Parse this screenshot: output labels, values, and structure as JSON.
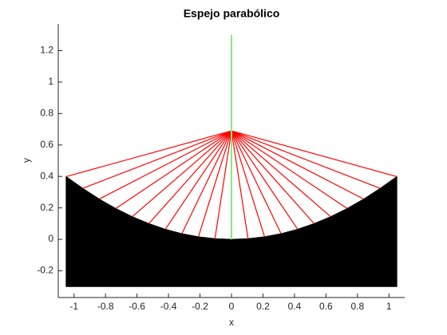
{
  "chart_data": {
    "type": "line",
    "title": "Espejo parabólico",
    "xlabel": "x",
    "ylabel": "y",
    "xlim": [
      -1.1,
      1.1
    ],
    "ylim": [
      -0.37,
      1.37
    ],
    "xticks": [
      -1,
      -0.8,
      -0.6,
      -0.4,
      -0.2,
      0,
      0.2,
      0.4,
      0.6,
      0.8,
      1
    ],
    "yticks": [
      -0.2,
      0,
      0.2,
      0.4,
      0.6,
      0.8,
      1,
      1.2
    ],
    "series": [
      {
        "color": "#000000",
        "fill_to": -0.3,
        "x": [
          -1.05,
          -0.945,
          -0.84,
          -0.735,
          -0.63,
          -0.525,
          -0.42,
          -0.315,
          -0.21,
          -0.105,
          0,
          0.105,
          0.21,
          0.315,
          0.42,
          0.525,
          0.63,
          0.735,
          0.84,
          0.945,
          1.05
        ],
        "values": [
          0.399,
          0.324,
          0.256,
          0.196,
          0.144,
          0.1,
          0.064,
          0.036,
          0.016,
          0.004,
          0,
          0.004,
          0.016,
          0.036,
          0.064,
          0.1,
          0.144,
          0.196,
          0.256,
          0.324,
          0.399
        ]
      },
      {
        "color": "#80ee80",
        "x": [
          0,
          0
        ],
        "values": [
          0,
          1.3
        ]
      }
    ],
    "rays": {
      "color": "#ff0000",
      "focus": [
        0,
        0.69
      ]
    }
  }
}
